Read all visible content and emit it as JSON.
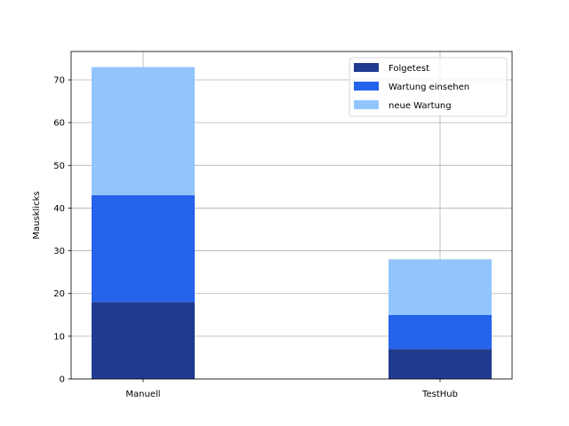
{
  "chart_data": {
    "type": "bar",
    "stacked": true,
    "categories": [
      "Manuell",
      "TestHub"
    ],
    "series": [
      {
        "name": "Folgetest",
        "values": [
          18,
          7
        ],
        "color": "#1f3b8f"
      },
      {
        "name": "Wartung einsehen",
        "values": [
          25,
          8
        ],
        "color": "#2563eb"
      },
      {
        "name": "neue Wartung",
        "values": [
          30,
          13
        ],
        "color": "#93c5fd"
      }
    ],
    "title": "",
    "xlabel": "",
    "ylabel": "Mausklicks",
    "ylim": [
      0,
      76.65
    ],
    "yticks": [
      0,
      10,
      20,
      30,
      40,
      50,
      60,
      70
    ],
    "grid": true,
    "legend_position": "top-right"
  }
}
